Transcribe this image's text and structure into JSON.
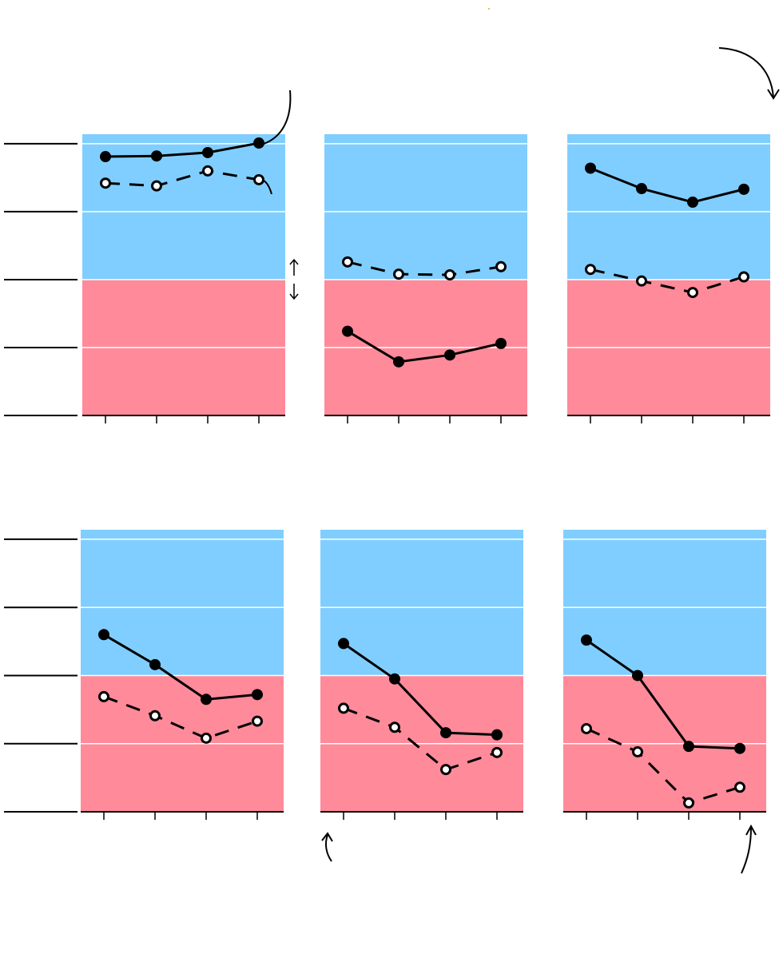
{
  "chart_data": [
    {
      "type": "line",
      "categories": [
        null,
        null,
        null,
        null
      ],
      "ylim": [
        0,
        4.14
      ],
      "yticks": [
        0,
        1,
        2,
        3,
        4
      ],
      "grid": true,
      "threshold": 2,
      "band_colors": [
        "#ff8a9a",
        "#80ceff"
      ],
      "series": [
        {
          "color": "#000000",
          "style": "solid",
          "marker": "filled",
          "values": [
            3.81,
            3.82,
            3.87,
            4.01
          ]
        },
        {
          "color": "#000000",
          "style": "dashed",
          "marker": "open",
          "values": [
            3.42,
            3.38,
            3.6,
            3.47
          ]
        }
      ]
    },
    {
      "type": "line",
      "categories": [
        null,
        null,
        null,
        null
      ],
      "ylim": [
        0,
        4.14
      ],
      "yticks": [
        0,
        1,
        2,
        3,
        4
      ],
      "grid": true,
      "threshold": 2,
      "band_colors": [
        "#ff8a9a",
        "#80ceff"
      ],
      "series": [
        {
          "color": "#000000",
          "style": "solid",
          "marker": "filled",
          "values": [
            1.24,
            0.79,
            0.89,
            1.06
          ]
        },
        {
          "color": "#000000",
          "style": "dashed",
          "marker": "open",
          "values": [
            2.26,
            2.08,
            2.07,
            2.19
          ]
        }
      ]
    },
    {
      "type": "line",
      "categories": [
        null,
        null,
        null,
        null
      ],
      "ylim": [
        0,
        4.14
      ],
      "yticks": [
        0,
        1,
        2,
        3,
        4
      ],
      "grid": true,
      "threshold": 2,
      "band_colors": [
        "#ff8a9a",
        "#80ceff"
      ],
      "series": [
        {
          "color": "#000000",
          "style": "solid",
          "marker": "filled",
          "values": [
            3.64,
            3.34,
            3.14,
            3.33
          ]
        },
        {
          "color": "#000000",
          "style": "dashed",
          "marker": "open",
          "values": [
            2.15,
            1.98,
            1.81,
            2.04
          ]
        }
      ]
    },
    {
      "type": "line",
      "categories": [
        null,
        null,
        null,
        null
      ],
      "ylim": [
        0,
        4.14
      ],
      "yticks": [
        0,
        1,
        2,
        3,
        4
      ],
      "grid": true,
      "threshold": 2,
      "band_colors": [
        "#ff8a9a",
        "#80ceff"
      ],
      "series": [
        {
          "color": "#000000",
          "style": "solid",
          "marker": "filled",
          "values": [
            2.6,
            2.16,
            1.65,
            1.72
          ]
        },
        {
          "color": "#000000",
          "style": "dashed",
          "marker": "open",
          "values": [
            1.69,
            1.41,
            1.08,
            1.33
          ]
        }
      ]
    },
    {
      "type": "line",
      "categories": [
        null,
        null,
        null,
        null
      ],
      "ylim": [
        0,
        4.14
      ],
      "yticks": [
        0,
        1,
        2,
        3,
        4
      ],
      "grid": true,
      "threshold": 2,
      "band_colors": [
        "#ff8a9a",
        "#80ceff"
      ],
      "series": [
        {
          "color": "#000000",
          "style": "solid",
          "marker": "filled",
          "values": [
            2.47,
            1.95,
            1.16,
            1.13
          ]
        },
        {
          "color": "#000000",
          "style": "dashed",
          "marker": "open",
          "values": [
            1.52,
            1.24,
            0.62,
            0.87
          ]
        }
      ]
    },
    {
      "type": "line",
      "categories": [
        null,
        null,
        null,
        null
      ],
      "ylim": [
        0,
        4.14
      ],
      "yticks": [
        0,
        1,
        2,
        3,
        4
      ],
      "grid": true,
      "threshold": 2,
      "band_colors": [
        "#ff8a9a",
        "#80ceff"
      ],
      "series": [
        {
          "color": "#000000",
          "style": "solid",
          "marker": "filled",
          "values": [
            2.52,
            2.0,
            0.96,
            0.93
          ]
        },
        {
          "color": "#000000",
          "style": "dashed",
          "marker": "open",
          "values": [
            1.22,
            0.88,
            0.13,
            0.36
          ]
        }
      ]
    }
  ]
}
